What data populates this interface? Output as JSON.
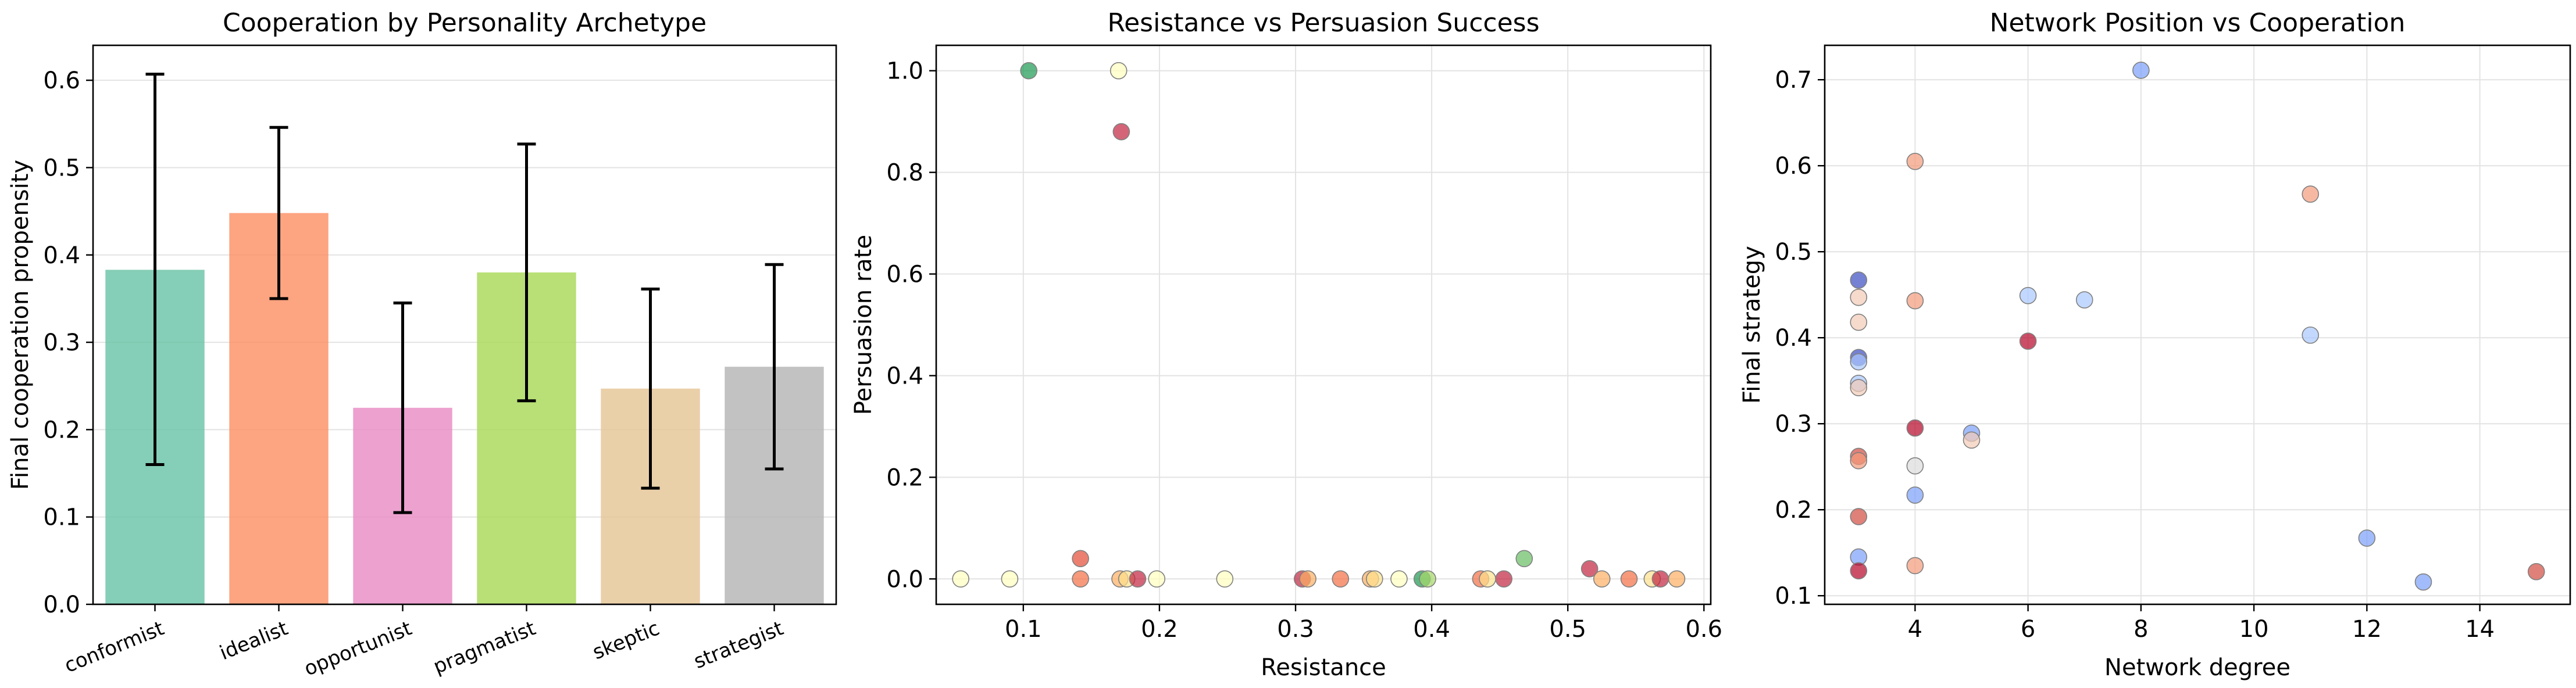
{
  "chart_data": [
    {
      "type": "bar",
      "title": "Cooperation by Personality Archetype",
      "xlabel": "",
      "ylabel": "Final cooperation propensity",
      "categories": [
        "conformist",
        "idealist",
        "opportunist",
        "pragmatist",
        "skeptic",
        "strategist"
      ],
      "values": [
        0.383,
        0.448,
        0.225,
        0.38,
        0.247,
        0.272
      ],
      "error_low": [
        0.16,
        0.35,
        0.105,
        0.233,
        0.133,
        0.155
      ],
      "error_high": [
        0.607,
        0.546,
        0.345,
        0.527,
        0.361,
        0.389
      ],
      "colors": [
        "#66c2a5",
        "#fc8d62",
        "#e78ac3",
        "#a6d854",
        "#e5c494",
        "#b3b3b3"
      ],
      "ylim": [
        0,
        0.64
      ],
      "yticks": [
        0.0,
        0.1,
        0.2,
        0.3,
        0.4,
        0.5,
        0.6
      ],
      "ytick_labels": [
        "0.0",
        "0.1",
        "0.2",
        "0.3",
        "0.4",
        "0.5",
        "0.6"
      ],
      "grid": true
    },
    {
      "type": "scatter",
      "title": "Resistance vs Persuasion Success",
      "xlabel": "Resistance",
      "ylabel": "Persuasion rate",
      "xlim": [
        0.036,
        0.605
      ],
      "ylim": [
        -0.05,
        1.05
      ],
      "xticks": [
        0.1,
        0.2,
        0.3,
        0.4,
        0.5,
        0.6
      ],
      "xtick_labels": [
        "0.1",
        "0.2",
        "0.3",
        "0.4",
        "0.5",
        "0.6"
      ],
      "yticks": [
        0.0,
        0.2,
        0.4,
        0.6,
        0.8,
        1.0
      ],
      "ytick_labels": [
        "0.0",
        "0.2",
        "0.4",
        "0.6",
        "0.8",
        "1.0"
      ],
      "grid": true,
      "points": [
        {
          "x": 0.104,
          "y": 1.0,
          "color": "#1a9850"
        },
        {
          "x": 0.17,
          "y": 1.0,
          "color": "#ffffbf"
        },
        {
          "x": 0.172,
          "y": 0.88,
          "color": "#c2233f"
        },
        {
          "x": 0.054,
          "y": 0.0,
          "color": "#ffffbf"
        },
        {
          "x": 0.09,
          "y": 0.0,
          "color": "#ffffbf"
        },
        {
          "x": 0.142,
          "y": 0.04,
          "color": "#e34a33"
        },
        {
          "x": 0.142,
          "y": 0.0,
          "color": "#f46d43"
        },
        {
          "x": 0.171,
          "y": 0.0,
          "color": "#fdae61"
        },
        {
          "x": 0.176,
          "y": 0.0,
          "color": "#fee08b"
        },
        {
          "x": 0.184,
          "y": 0.0,
          "color": "#c2233f"
        },
        {
          "x": 0.198,
          "y": 0.0,
          "color": "#ffffbf"
        },
        {
          "x": 0.248,
          "y": 0.0,
          "color": "#ffffbf"
        },
        {
          "x": 0.305,
          "y": 0.0,
          "color": "#c2233f"
        },
        {
          "x": 0.309,
          "y": 0.0,
          "color": "#fdae61"
        },
        {
          "x": 0.333,
          "y": 0.0,
          "color": "#f46d43"
        },
        {
          "x": 0.355,
          "y": 0.0,
          "color": "#fdae61"
        },
        {
          "x": 0.358,
          "y": 0.0,
          "color": "#fee08b"
        },
        {
          "x": 0.376,
          "y": 0.0,
          "color": "#ffffbf"
        },
        {
          "x": 0.393,
          "y": 0.0,
          "color": "#1a9850"
        },
        {
          "x": 0.397,
          "y": 0.0,
          "color": "#a6d96a"
        },
        {
          "x": 0.436,
          "y": 0.0,
          "color": "#f46d43"
        },
        {
          "x": 0.441,
          "y": 0.0,
          "color": "#fee08b"
        },
        {
          "x": 0.453,
          "y": 0.0,
          "color": "#c2233f"
        },
        {
          "x": 0.468,
          "y": 0.04,
          "color": "#66bd63"
        },
        {
          "x": 0.516,
          "y": 0.02,
          "color": "#c2233f"
        },
        {
          "x": 0.525,
          "y": 0.0,
          "color": "#fdae61"
        },
        {
          "x": 0.545,
          "y": 0.0,
          "color": "#f46d43"
        },
        {
          "x": 0.562,
          "y": 0.0,
          "color": "#fee08b"
        },
        {
          "x": 0.568,
          "y": 0.0,
          "color": "#c2233f"
        },
        {
          "x": 0.58,
          "y": 0.0,
          "color": "#fdae61"
        }
      ]
    },
    {
      "type": "scatter",
      "title": "Network Position vs Cooperation",
      "xlabel": "Network degree",
      "ylabel": "Final strategy",
      "xlim": [
        2.4,
        15.6
      ],
      "ylim": [
        0.09,
        0.74
      ],
      "xticks": [
        4,
        6,
        8,
        10,
        12,
        14
      ],
      "xtick_labels": [
        "4",
        "6",
        "8",
        "10",
        "12",
        "14"
      ],
      "yticks": [
        0.1,
        0.2,
        0.3,
        0.4,
        0.5,
        0.6,
        0.7
      ],
      "ytick_labels": [
        "0.1",
        "0.2",
        "0.3",
        "0.4",
        "0.5",
        "0.6",
        "0.7"
      ],
      "grid": true,
      "points": [
        {
          "x": 3,
          "y": 0.467,
          "color": "#3b4cc0"
        },
        {
          "x": 3,
          "y": 0.447,
          "color": "#f2cbb7"
        },
        {
          "x": 3,
          "y": 0.418,
          "color": "#f2cbb7"
        },
        {
          "x": 3,
          "y": 0.377,
          "color": "#3b4cc0"
        },
        {
          "x": 3,
          "y": 0.372,
          "color": "#aac7fd"
        },
        {
          "x": 3,
          "y": 0.347,
          "color": "#aac7fd"
        },
        {
          "x": 3,
          "y": 0.342,
          "color": "#f2cbb7"
        },
        {
          "x": 3,
          "y": 0.262,
          "color": "#d24b40"
        },
        {
          "x": 3,
          "y": 0.257,
          "color": "#f49a7b"
        },
        {
          "x": 3,
          "y": 0.192,
          "color": "#d24b40"
        },
        {
          "x": 3,
          "y": 0.145,
          "color": "#7b9ff9"
        },
        {
          "x": 3,
          "y": 0.129,
          "color": "#b40426"
        },
        {
          "x": 4,
          "y": 0.605,
          "color": "#f49a7b"
        },
        {
          "x": 4,
          "y": 0.443,
          "color": "#f49a7b"
        },
        {
          "x": 4,
          "y": 0.295,
          "color": "#b40426"
        },
        {
          "x": 4,
          "y": 0.251,
          "color": "#dddcdc"
        },
        {
          "x": 4,
          "y": 0.217,
          "color": "#7b9ff9"
        },
        {
          "x": 4,
          "y": 0.135,
          "color": "#f49a7b"
        },
        {
          "x": 5,
          "y": 0.289,
          "color": "#7b9ff9"
        },
        {
          "x": 5,
          "y": 0.281,
          "color": "#f2cbb7"
        },
        {
          "x": 6,
          "y": 0.449,
          "color": "#aac7fd"
        },
        {
          "x": 6,
          "y": 0.396,
          "color": "#b40426"
        },
        {
          "x": 7,
          "y": 0.444,
          "color": "#aac7fd"
        },
        {
          "x": 8,
          "y": 0.711,
          "color": "#7b9ff9"
        },
        {
          "x": 11,
          "y": 0.567,
          "color": "#f49a7b"
        },
        {
          "x": 11,
          "y": 0.403,
          "color": "#aac7fd"
        },
        {
          "x": 12,
          "y": 0.167,
          "color": "#7b9ff9"
        },
        {
          "x": 13,
          "y": 0.116,
          "color": "#7b9ff9"
        },
        {
          "x": 15,
          "y": 0.128,
          "color": "#d24b40"
        }
      ]
    }
  ]
}
